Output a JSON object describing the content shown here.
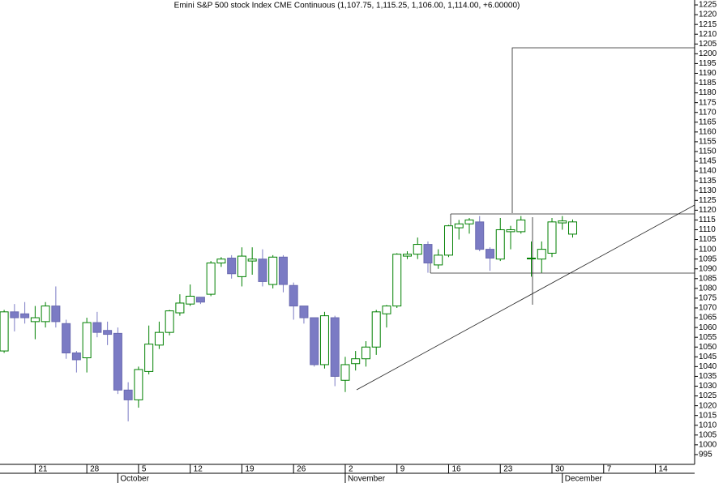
{
  "chart_data": {
    "type": "candlestick",
    "title": "Emini S&P 500 stock Index CME Continuous (1,107.75, 1,115.25, 1,106.00, 1,114.00, +6.00000)",
    "x": [
      0,
      1,
      2,
      3,
      4,
      5,
      6,
      7,
      8,
      9,
      10,
      11,
      12,
      13,
      14,
      15,
      16,
      17,
      18,
      19,
      20,
      21,
      22,
      23,
      24,
      25,
      26,
      27,
      28,
      29,
      30,
      31,
      32,
      33,
      34,
      35,
      36,
      37,
      38,
      39,
      40,
      41,
      42,
      43,
      44,
      45,
      46,
      47,
      48,
      49,
      50,
      51,
      52,
      53,
      54,
      55
    ],
    "open": [
      1048,
      1068,
      1067,
      1063,
      1063,
      1071,
      1062,
      1047,
      1044.5,
      1062.5,
      1058.5,
      1057,
      1028,
      1023,
      1037.5,
      1051,
      1057.5,
      1067.5,
      1072,
      1075.5,
      1077,
      1093,
      1095.5,
      1086,
      1094,
      1095,
      1082,
      1096,
      1081.5,
      1071,
      1065,
      1041,
      1065,
      1033,
      1041.5,
      1044,
      1050,
      1067,
      1071,
      1096.5,
      1097.5,
      1102.5,
      1092,
      1097,
      1111,
      1113,
      1114,
      1100,
      1095,
      1109,
      1109,
      1095.5,
      1095,
      1098,
      1113.5,
      1107.75
    ],
    "high": [
      1069,
      1072,
      1073,
      1071,
      1073,
      1081,
      1064,
      1048,
      1065,
      1068,
      1063,
      1060,
      1032,
      1040,
      1061,
      1063,
      1069,
      1077,
      1082,
      1075.5,
      1094,
      1096,
      1097,
      1101,
      1101,
      1100,
      1097,
      1097,
      1083,
      1071,
      1065,
      1068,
      1066,
      1045,
      1048,
      1053,
      1069,
      1071.5,
      1098,
      1099,
      1106,
      1104,
      1100,
      1112.5,
      1115,
      1116,
      1117,
      1101,
      1116,
      1112,
      1117,
      1104,
      1104,
      1116,
      1117,
      1115.25
    ],
    "low": [
      1047,
      1058,
      1062,
      1054,
      1060,
      1060,
      1044,
      1037,
      1037,
      1055,
      1051,
      1026,
      1012,
      1019,
      1036,
      1049,
      1056,
      1066,
      1071,
      1072,
      1076,
      1091,
      1085,
      1081,
      1087,
      1081,
      1080,
      1078,
      1064,
      1062,
      1040,
      1039,
      1030,
      1027,
      1038,
      1040,
      1046,
      1060,
      1070,
      1095,
      1095,
      1088,
      1090,
      1096,
      1105,
      1108,
      1099,
      1089,
      1094,
      1100,
      1108,
      1086,
      1088,
      1096,
      1110,
      1106
    ],
    "close": [
      1068,
      1065,
      1065,
      1065,
      1071,
      1063,
      1047,
      1043.5,
      1062.5,
      1057.5,
      1056.5,
      1028,
      1023,
      1038.5,
      1051.5,
      1057.5,
      1068.5,
      1072.5,
      1076,
      1073,
      1093,
      1095,
      1087.5,
      1096.5,
      1095,
      1083.5,
      1096,
      1082,
      1071,
      1065,
      1041,
      1066,
      1035,
      1041,
      1044,
      1050,
      1068,
      1071,
      1097.5,
      1097.5,
      1102.5,
      1093,
      1097,
      1112,
      1113,
      1115,
      1100,
      1095.5,
      1110,
      1110,
      1115,
      1095.5,
      1100,
      1114,
      1114.5,
      1114
    ],
    "up_color": "#008000",
    "down_color": "#7b7bc4",
    "xlim": [
      -0.4,
      66.8
    ],
    "xticks": [
      {
        "value": 3,
        "label": "21"
      },
      {
        "value": 8,
        "label": "28"
      },
      {
        "value": 13,
        "label": "5"
      },
      {
        "value": 18,
        "label": "12"
      },
      {
        "value": 23,
        "label": "19"
      },
      {
        "value": 28,
        "label": "26"
      },
      {
        "value": 33,
        "label": "2"
      },
      {
        "value": 38,
        "label": "9"
      },
      {
        "value": 43,
        "label": "16"
      },
      {
        "value": 48,
        "label": "23"
      },
      {
        "value": 53,
        "label": "30"
      },
      {
        "value": 58,
        "label": "7"
      },
      {
        "value": 63,
        "label": "14"
      }
    ],
    "month_ticks": [
      {
        "value": 11,
        "label": "October"
      },
      {
        "value": 33,
        "label": "November"
      },
      {
        "value": 54,
        "label": "December"
      }
    ],
    "ylim": [
      990,
      1227.5
    ],
    "yticks": [
      995,
      1000,
      1005,
      1010,
      1015,
      1020,
      1025,
      1030,
      1035,
      1040,
      1045,
      1050,
      1055,
      1060,
      1065,
      1070,
      1075,
      1080,
      1085,
      1090,
      1095,
      1100,
      1105,
      1110,
      1115,
      1120,
      1125,
      1130,
      1135,
      1140,
      1145,
      1150,
      1155,
      1160,
      1165,
      1170,
      1175,
      1180,
      1185,
      1190,
      1195,
      1200,
      1205,
      1210,
      1215,
      1220,
      1225
    ]
  }
}
